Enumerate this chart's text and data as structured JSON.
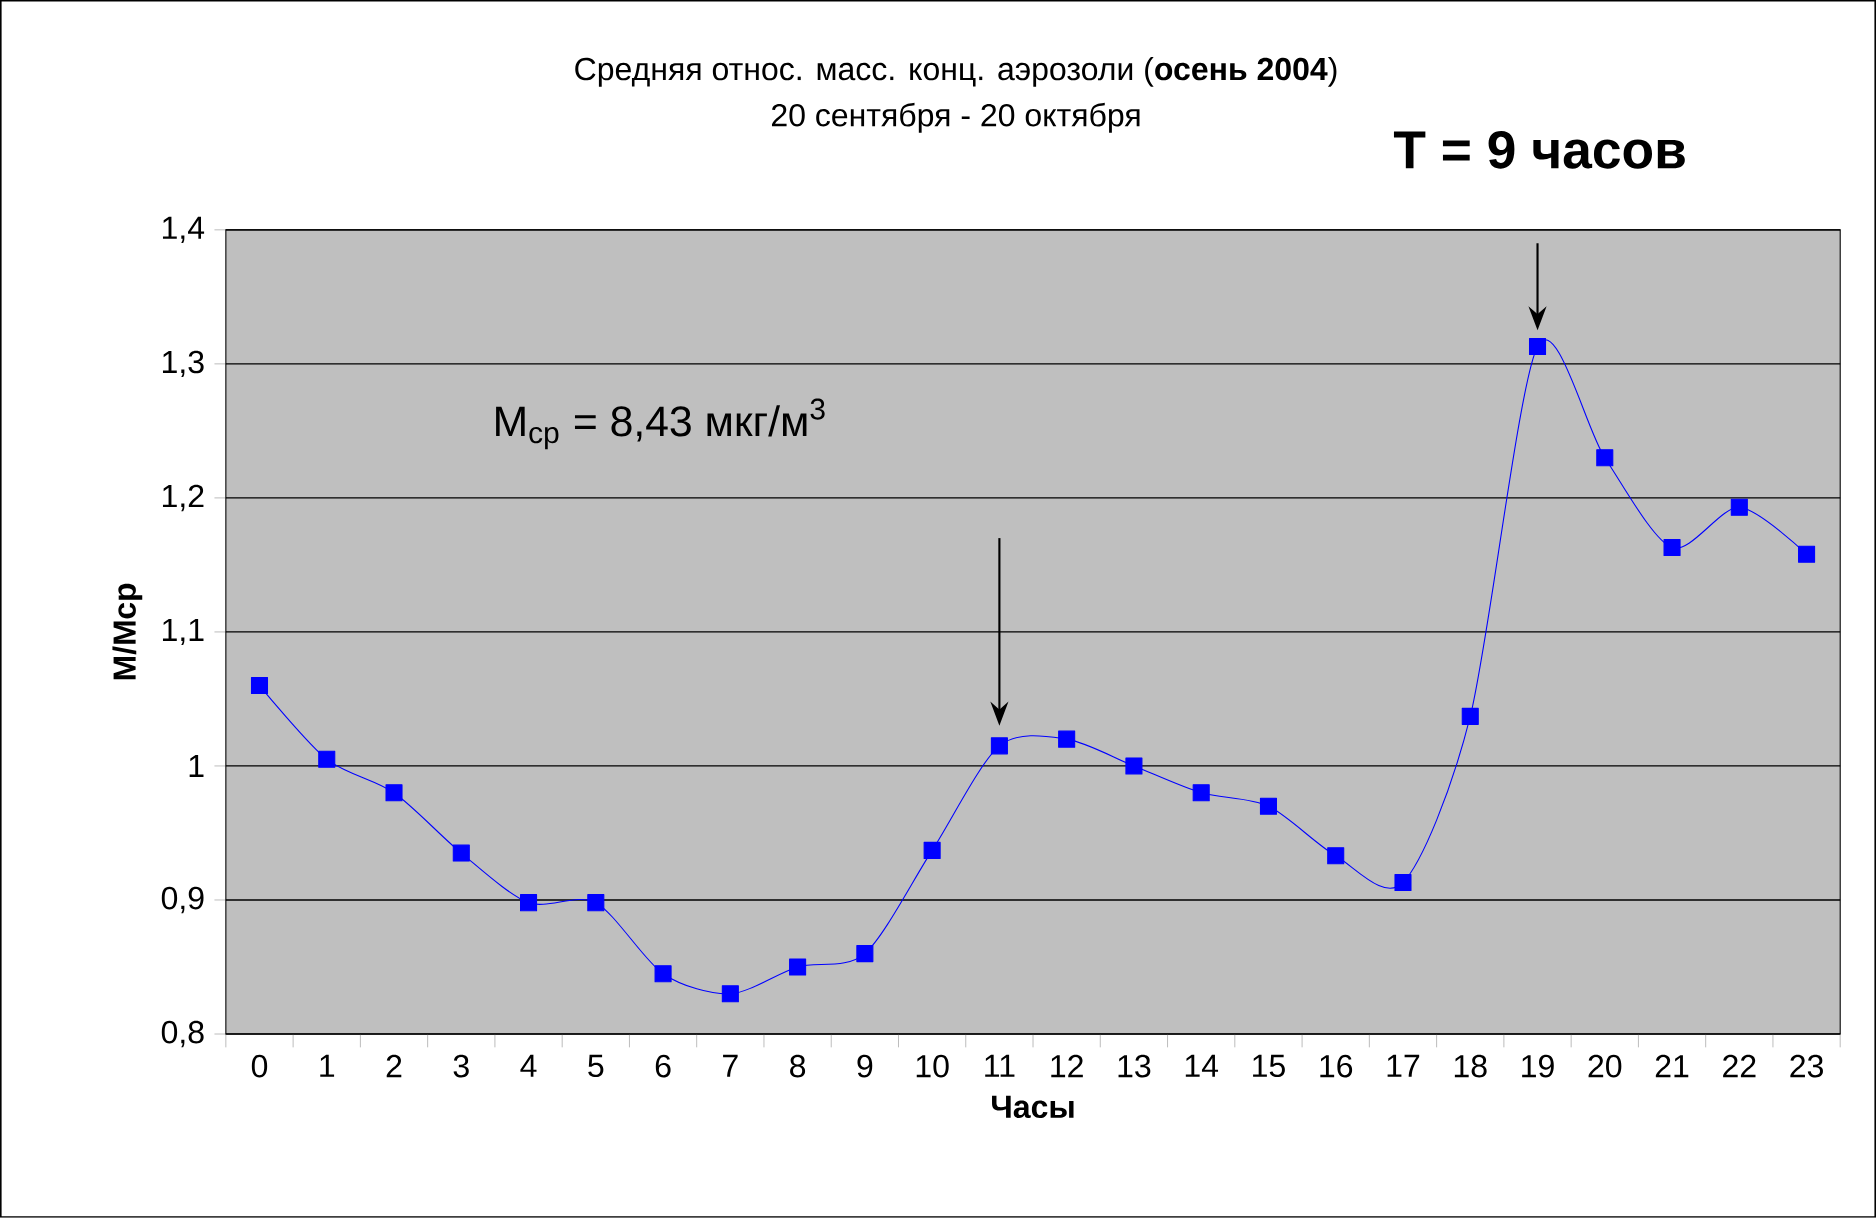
{
  "chart_data": {
    "type": "line",
    "title": "Средняя относ. масс. конц. аэрозоли (**осень 2004**)",
    "subtitle": "20 сентября - 20 октября",
    "xlabel": "Часы",
    "ylabel": "М/Мср",
    "categories": [
      "0",
      "1",
      "2",
      "3",
      "4",
      "5",
      "6",
      "7",
      "8",
      "9",
      "10",
      "11",
      "12",
      "13",
      "14",
      "15",
      "16",
      "17",
      "18",
      "19",
      "20",
      "21",
      "22",
      "23"
    ],
    "series": [
      {
        "color": "#0000ff",
        "values": [
          1.06,
          1.005,
          0.98,
          0.935,
          0.898,
          0.898,
          0.845,
          0.83,
          0.85,
          0.86,
          0.937,
          1.015,
          1.02,
          1.0,
          0.98,
          0.97,
          0.933,
          0.913,
          1.037,
          1.313,
          1.23,
          1.163,
          1.193,
          1.158
        ]
      }
    ],
    "ylim": [
      0.8,
      1.4
    ],
    "yticks": [
      {
        "value": 0.8,
        "label": "0,8"
      },
      {
        "value": 0.9,
        "label": "0,9"
      },
      1,
      {
        "value": 1.1,
        "label": "1,1"
      },
      {
        "value": 1.2,
        "label": "1,2"
      },
      {
        "value": 1.3,
        "label": "1,3"
      },
      {
        "value": 1.4,
        "label": "1,4"
      }
    ],
    "grid": "y",
    "marker": "square",
    "line_style": "solid",
    "annotations": [
      "T = 9 часов",
      "M$_{ср}$ = 8,43 мкг/м$^{3}$"
    ]
  }
}
